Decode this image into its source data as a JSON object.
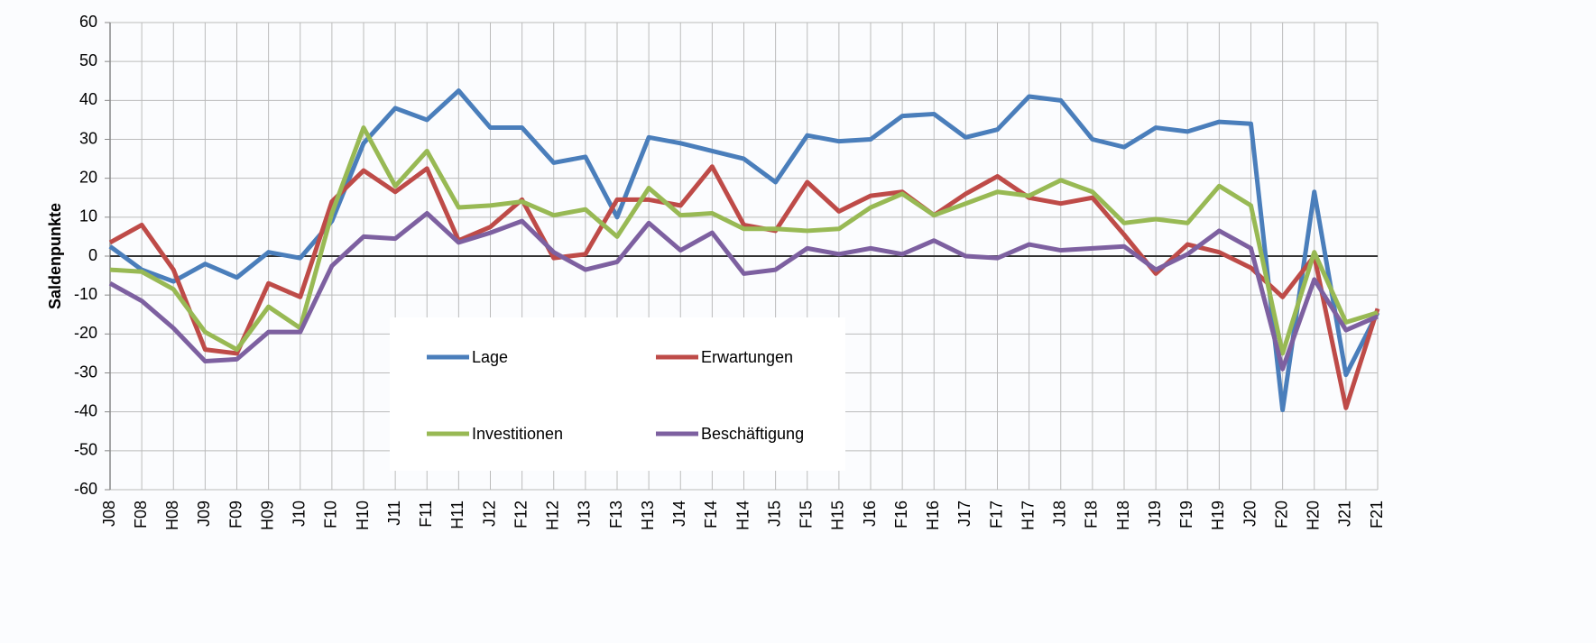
{
  "chart_data": {
    "type": "line",
    "ylabel": "Saldenpunkte",
    "categories": [
      "J08",
      "F08",
      "H08",
      "J09",
      "F09",
      "H09",
      "J10",
      "F10",
      "H10",
      "J11",
      "F11",
      "H11",
      "J12",
      "F12",
      "H12",
      "J13",
      "F13",
      "H13",
      "J14",
      "F14",
      "H14",
      "J15",
      "F15",
      "H15",
      "J16",
      "F16",
      "H16",
      "J17",
      "F17",
      "H17",
      "J18",
      "F18",
      "H18",
      "J19",
      "F19",
      "H19",
      "J20",
      "F20",
      "H20",
      "J21",
      "F21"
    ],
    "series": [
      {
        "name": "Lage",
        "color": "#4a7ebb",
        "values": [
          2.5,
          -3.5,
          -6.5,
          -2,
          -5.5,
          1,
          -0.5,
          9,
          29,
          38,
          35,
          42.5,
          33,
          33,
          24,
          25.5,
          10,
          30.5,
          29,
          27,
          25,
          19,
          31,
          29.5,
          30,
          36,
          36.5,
          30.5,
          32.5,
          41,
          40,
          30,
          28,
          33,
          32,
          34.5,
          34,
          -39.5,
          16.5,
          -30.5,
          -14.5
        ]
      },
      {
        "name": "Erwartungen",
        "color": "#be4b48",
        "values": [
          3.5,
          8,
          -3.5,
          -24,
          -25,
          -7,
          -10.5,
          14,
          22,
          16.5,
          22.5,
          4,
          7.5,
          14.5,
          -0.5,
          0.5,
          14.5,
          14.5,
          13,
          23,
          8,
          6.5,
          19,
          11.5,
          15.5,
          16.5,
          10.5,
          16,
          20.5,
          15,
          13.5,
          15,
          5.5,
          -4.5,
          3,
          1,
          -3,
          -10.5,
          0,
          -39,
          -13.5
        ]
      },
      {
        "name": "Investitionen",
        "color": "#98b954",
        "values": [
          -3.5,
          -4,
          -8.5,
          -19.5,
          -24,
          -13,
          -18.5,
          11,
          33,
          18,
          27,
          12.5,
          13,
          14,
          10.5,
          12,
          5,
          17.5,
          10.5,
          11,
          7,
          7,
          6.5,
          7,
          12.5,
          16,
          10.5,
          13.5,
          16.5,
          15.5,
          19.5,
          16.5,
          8.5,
          9.5,
          8.5,
          18,
          13,
          -25,
          1,
          -17,
          -14.5
        ]
      },
      {
        "name": "Beschäftigung",
        "color": "#7d60a0",
        "values": [
          -7,
          -11.5,
          -18.5,
          -27,
          -26.5,
          -19.5,
          -19.5,
          -2.5,
          5,
          4.5,
          11,
          3.5,
          6,
          9,
          1,
          -3.5,
          -1.5,
          8.5,
          1.5,
          6,
          -4.5,
          -3.5,
          2,
          0.5,
          2,
          0.5,
          4,
          0,
          -0.5,
          3,
          1.5,
          2,
          2.5,
          -3.5,
          0.5,
          6.5,
          2,
          -29,
          -6,
          -19,
          -15.5
        ]
      }
    ],
    "ylim": [
      -60,
      60
    ],
    "yticks": [
      -60,
      -50,
      -40,
      -30,
      -20,
      -10,
      0,
      10,
      20,
      30,
      40,
      50,
      60
    ],
    "grid": true
  }
}
